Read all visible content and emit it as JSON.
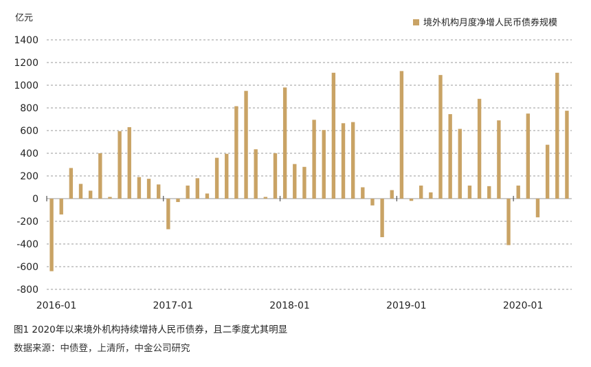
{
  "chart_data": {
    "type": "bar",
    "title": "",
    "ylabel": "亿元",
    "legend": {
      "label": "境外机构月度净增人民币债券规模",
      "position": "top-right"
    },
    "color": "#C9A365",
    "grid": true,
    "ylim": [
      -800,
      1400
    ],
    "yticks": [
      "1400",
      "1200",
      "1000",
      "800",
      "600",
      "400",
      "200",
      "0",
      "-200",
      "-400",
      "-600",
      "-800"
    ],
    "xticks": [
      "2016-01",
      "2017-01",
      "2018-01",
      "2019-01",
      "2020-01"
    ],
    "categories": [
      "2016-01",
      "2016-02",
      "2016-03",
      "2016-04",
      "2016-05",
      "2016-06",
      "2016-07",
      "2016-08",
      "2016-09",
      "2016-10",
      "2016-11",
      "2016-12",
      "2017-01",
      "2017-02",
      "2017-03",
      "2017-04",
      "2017-05",
      "2017-06",
      "2017-07",
      "2017-08",
      "2017-09",
      "2017-10",
      "2017-11",
      "2017-12",
      "2018-01",
      "2018-02",
      "2018-03",
      "2018-04",
      "2018-05",
      "2018-06",
      "2018-07",
      "2018-08",
      "2018-09",
      "2018-10",
      "2018-11",
      "2018-12",
      "2019-01",
      "2019-02",
      "2019-03",
      "2019-04",
      "2019-05",
      "2019-06",
      "2019-07",
      "2019-08",
      "2019-09",
      "2019-10",
      "2019-11",
      "2019-12",
      "2020-01",
      "2020-02",
      "2020-03",
      "2020-04",
      "2020-05",
      "2020-06"
    ],
    "values": [
      -640,
      -140,
      270,
      130,
      70,
      400,
      15,
      595,
      630,
      190,
      175,
      125,
      -270,
      -30,
      115,
      180,
      45,
      360,
      395,
      815,
      950,
      435,
      15,
      400,
      980,
      305,
      280,
      695,
      605,
      1110,
      665,
      675,
      100,
      -60,
      -340,
      75,
      1125,
      -20,
      115,
      55,
      1090,
      745,
      615,
      115,
      880,
      110,
      690,
      -410,
      115,
      750,
      -165,
      475,
      1110,
      775
    ]
  },
  "caption": "图1 2020年以来境外机构持续增持人民币债券，且二季度尤其明显",
  "source": "数据来源：中债登，上清所，中金公司研究"
}
